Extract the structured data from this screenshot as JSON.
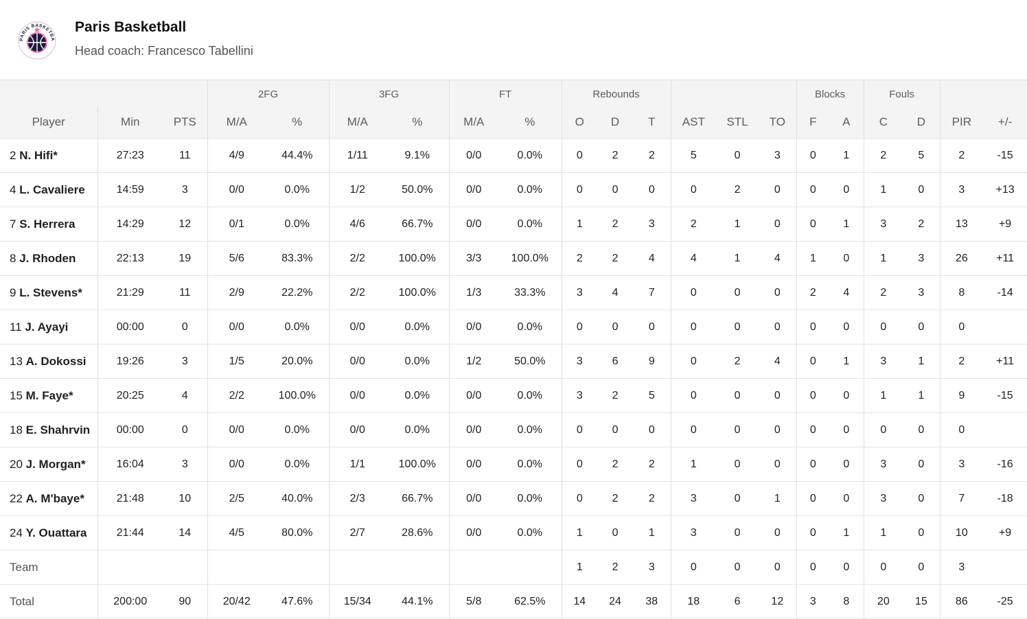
{
  "team": {
    "name": "Paris Basketball",
    "coach": "Head coach: Francesco Tabellini",
    "logo_text": "PARIS BASKETBALL"
  },
  "groups": {
    "fg2": "2FG",
    "fg3": "3FG",
    "ft": "FT",
    "rebounds": "Rebounds",
    "blocks": "Blocks",
    "fouls": "Fouls"
  },
  "columns": [
    "Player",
    "Min",
    "PTS",
    "M/A",
    "%",
    "M/A",
    "%",
    "M/A",
    "%",
    "O",
    "D",
    "T",
    "AST",
    "STL",
    "TO",
    "F",
    "A",
    "C",
    "D",
    "PIR",
    "+/-"
  ],
  "rows": [
    {
      "number": "2",
      "name": "N. Hifi*",
      "stats": [
        "27:23",
        "11",
        "4/9",
        "44.4%",
        "1/11",
        "9.1%",
        "0/0",
        "0.0%",
        "0",
        "2",
        "2",
        "5",
        "0",
        "3",
        "0",
        "1",
        "2",
        "5",
        "2",
        "-15"
      ]
    },
    {
      "number": "4",
      "name": "L. Cavaliere",
      "stats": [
        "14:59",
        "3",
        "0/0",
        "0.0%",
        "1/2",
        "50.0%",
        "0/0",
        "0.0%",
        "0",
        "0",
        "0",
        "0",
        "2",
        "0",
        "0",
        "0",
        "1",
        "0",
        "3",
        "+13"
      ]
    },
    {
      "number": "7",
      "name": "S. Herrera",
      "stats": [
        "14:29",
        "12",
        "0/1",
        "0.0%",
        "4/6",
        "66.7%",
        "0/0",
        "0.0%",
        "1",
        "2",
        "3",
        "2",
        "1",
        "0",
        "0",
        "1",
        "3",
        "2",
        "13",
        "+9"
      ]
    },
    {
      "number": "8",
      "name": "J. Rhoden",
      "stats": [
        "22:13",
        "19",
        "5/6",
        "83.3%",
        "2/2",
        "100.0%",
        "3/3",
        "100.0%",
        "2",
        "2",
        "4",
        "4",
        "1",
        "4",
        "1",
        "0",
        "1",
        "3",
        "26",
        "+11"
      ]
    },
    {
      "number": "9",
      "name": "L. Stevens*",
      "stats": [
        "21:29",
        "11",
        "2/9",
        "22.2%",
        "2/2",
        "100.0%",
        "1/3",
        "33.3%",
        "3",
        "4",
        "7",
        "0",
        "0",
        "0",
        "2",
        "4",
        "2",
        "3",
        "8",
        "-14"
      ]
    },
    {
      "number": "11",
      "name": "J. Ayayi",
      "stats": [
        "00:00",
        "0",
        "0/0",
        "0.0%",
        "0/0",
        "0.0%",
        "0/0",
        "0.0%",
        "0",
        "0",
        "0",
        "0",
        "0",
        "0",
        "0",
        "0",
        "0",
        "0",
        "0",
        ""
      ]
    },
    {
      "number": "13",
      "name": "A. Dokossi",
      "stats": [
        "19:26",
        "3",
        "1/5",
        "20.0%",
        "0/0",
        "0.0%",
        "1/2",
        "50.0%",
        "3",
        "6",
        "9",
        "0",
        "2",
        "4",
        "0",
        "1",
        "3",
        "1",
        "2",
        "+11"
      ]
    },
    {
      "number": "15",
      "name": "M. Faye*",
      "stats": [
        "20:25",
        "4",
        "2/2",
        "100.0%",
        "0/0",
        "0.0%",
        "0/0",
        "0.0%",
        "3",
        "2",
        "5",
        "0",
        "0",
        "0",
        "0",
        "0",
        "1",
        "1",
        "9",
        "-15"
      ]
    },
    {
      "number": "18",
      "name": "E. Shahrvin",
      "stats": [
        "00:00",
        "0",
        "0/0",
        "0.0%",
        "0/0",
        "0.0%",
        "0/0",
        "0.0%",
        "0",
        "0",
        "0",
        "0",
        "0",
        "0",
        "0",
        "0",
        "0",
        "0",
        "0",
        ""
      ]
    },
    {
      "number": "20",
      "name": "J. Morgan*",
      "stats": [
        "16:04",
        "3",
        "0/0",
        "0.0%",
        "1/1",
        "100.0%",
        "0/0",
        "0.0%",
        "0",
        "2",
        "2",
        "1",
        "0",
        "0",
        "0",
        "0",
        "3",
        "0",
        "3",
        "-16"
      ]
    },
    {
      "number": "22",
      "name": "A. M'baye*",
      "stats": [
        "21:48",
        "10",
        "2/5",
        "40.0%",
        "2/3",
        "66.7%",
        "0/0",
        "0.0%",
        "0",
        "2",
        "2",
        "3",
        "0",
        "1",
        "0",
        "0",
        "3",
        "0",
        "7",
        "-18"
      ]
    },
    {
      "number": "24",
      "name": "Y. Ouattara",
      "stats": [
        "21:44",
        "14",
        "4/5",
        "80.0%",
        "2/7",
        "28.6%",
        "0/0",
        "0.0%",
        "1",
        "0",
        "1",
        "3",
        "0",
        "0",
        "0",
        "1",
        "1",
        "0",
        "10",
        "+9"
      ]
    }
  ],
  "team_row": {
    "label": "Team",
    "stats": [
      "",
      "",
      "",
      "",
      "",
      "",
      "",
      "",
      "1",
      "2",
      "3",
      "0",
      "0",
      "0",
      "0",
      "0",
      "0",
      "0",
      "3",
      ""
    ]
  },
  "total_row": {
    "label": "Total",
    "stats": [
      "200:00",
      "90",
      "20/42",
      "47.6%",
      "15/34",
      "44.1%",
      "5/8",
      "62.5%",
      "14",
      "24",
      "38",
      "18",
      "6",
      "12",
      "3",
      "8",
      "20",
      "15",
      "86",
      "-25"
    ]
  }
}
